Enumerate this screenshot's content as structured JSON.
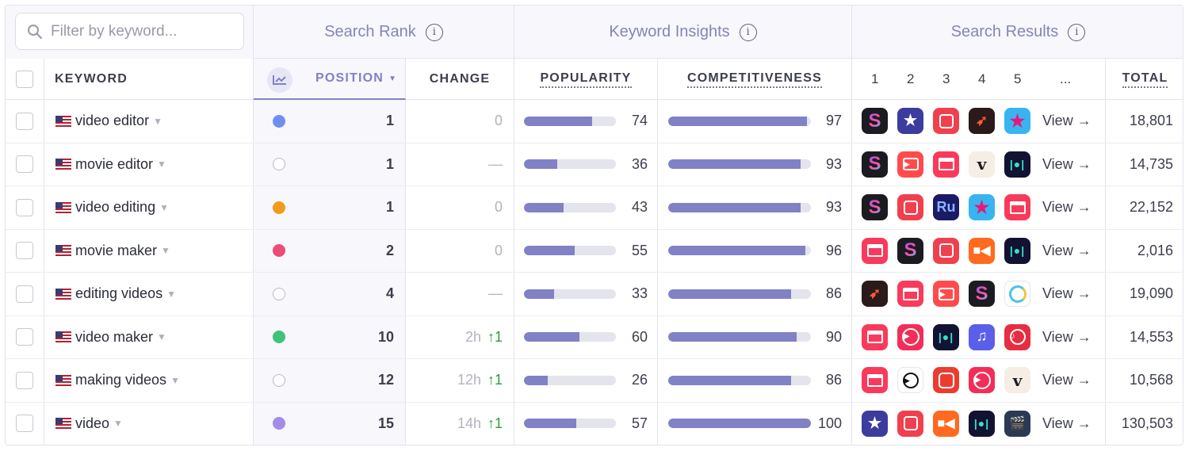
{
  "filter": {
    "placeholder": "Filter by keyword..."
  },
  "groups": {
    "search_rank": "Search Rank",
    "keyword_insights": "Keyword Insights",
    "search_results": "Search Results"
  },
  "columns": {
    "keyword": "KEYWORD",
    "position": "POSITION",
    "change": "CHANGE",
    "popularity": "POPULARITY",
    "competitiveness": "COMPETITIVENESS",
    "result_1": "1",
    "result_2": "2",
    "result_3": "3",
    "result_4": "4",
    "result_5": "5",
    "more": "...",
    "total": "TOTAL"
  },
  "view_label": "View →",
  "rows": [
    {
      "keyword": "video editor",
      "dot": "#6f8ff0",
      "position": "1",
      "change_time": "",
      "change_value": "0",
      "change_type": "neutral",
      "popularity": 74,
      "competitiveness": 97,
      "total": "18,801",
      "apps": [
        "s-icon",
        "star-icon",
        "frame-icon",
        "bird-icon",
        "pink-star-icon"
      ]
    },
    {
      "keyword": "movie editor",
      "dot": "",
      "position": "1",
      "change_time": "",
      "change_value": "—",
      "change_type": "neutral",
      "popularity": 36,
      "competitiveness": 93,
      "total": "14,735",
      "apps": [
        "s-icon",
        "play-card-icon",
        "clapper-icon",
        "v-icon",
        "waveform-icon"
      ]
    },
    {
      "keyword": "video editing",
      "dot": "#f39a1d",
      "position": "1",
      "change_time": "",
      "change_value": "0",
      "change_type": "neutral",
      "popularity": 43,
      "competitiveness": 93,
      "total": "22,152",
      "apps": [
        "s-icon",
        "frame-icon",
        "ru-icon",
        "pink-star-icon",
        "clapper-icon"
      ]
    },
    {
      "keyword": "movie maker",
      "dot": "#ec4c77",
      "position": "2",
      "change_time": "",
      "change_value": "0",
      "change_type": "neutral",
      "popularity": 55,
      "competitiveness": 96,
      "total": "2,016",
      "apps": [
        "clapper-icon",
        "s-icon",
        "frame-icon",
        "camera-icon",
        "waveform-icon"
      ]
    },
    {
      "keyword": "editing videos",
      "dot": "",
      "position": "4",
      "change_time": "",
      "change_value": "—",
      "change_type": "neutral",
      "popularity": 33,
      "competitiveness": 86,
      "total": "19,090",
      "apps": [
        "bird-icon",
        "clapper-icon",
        "play-card-icon",
        "s-icon",
        "ring-icon"
      ]
    },
    {
      "keyword": "video maker",
      "dot": "#3dc47a",
      "position": "10",
      "change_time": "2h",
      "change_value": "↑1",
      "change_type": "up",
      "popularity": 60,
      "competitiveness": 90,
      "total": "14,553",
      "apps": [
        "clapper-icon",
        "play-circle-icon",
        "waveform-icon",
        "music-icon",
        "music-frame-icon"
      ]
    },
    {
      "keyword": "making videos",
      "dot": "",
      "position": "12",
      "change_time": "12h",
      "change_value": "↑1",
      "change_type": "up",
      "popularity": 26,
      "competitiveness": 86,
      "total": "10,568",
      "apps": [
        "clapper-icon",
        "play-white-icon",
        "photo-frame-icon",
        "play-circle-icon",
        "v-icon"
      ]
    },
    {
      "keyword": "video",
      "dot": "#a38ce8",
      "position": "15",
      "change_time": "14h",
      "change_value": "↑1",
      "change_type": "up",
      "popularity": 57,
      "competitiveness": 100,
      "total": "130,503",
      "apps": [
        "star-icon",
        "frame-icon",
        "camera-icon",
        "waveform-icon",
        "film-icon"
      ]
    }
  ]
}
